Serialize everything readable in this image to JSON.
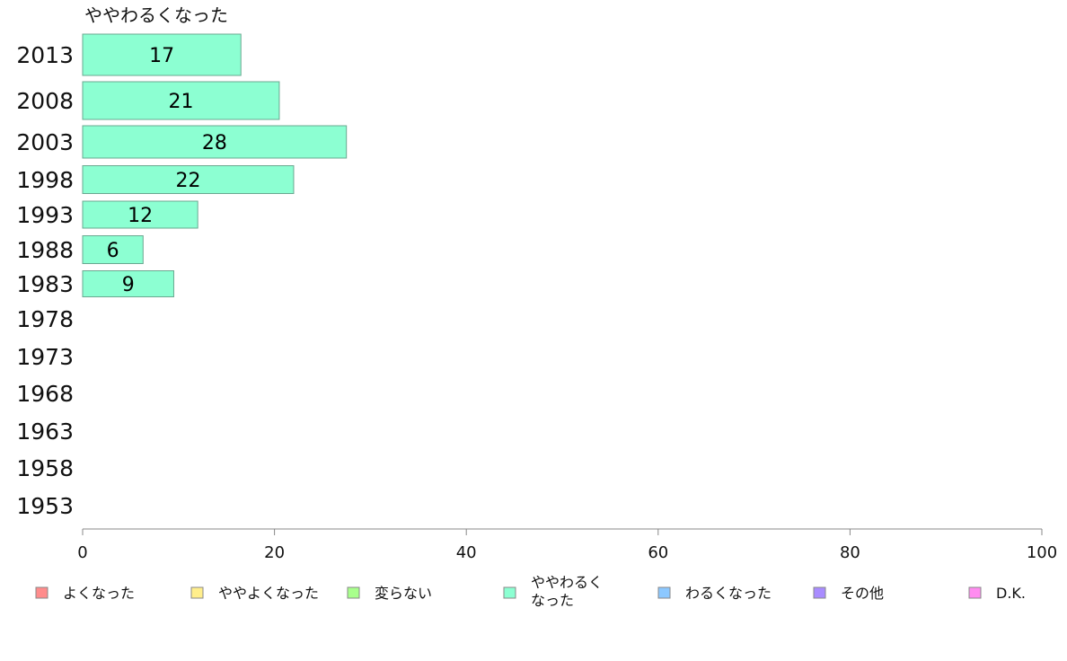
{
  "chart_data": {
    "type": "bar",
    "orientation": "horizontal",
    "title": "ややわるくなった",
    "categories": [
      "2013",
      "2008",
      "2003",
      "1998",
      "1993",
      "1988",
      "1983",
      "1978",
      "1973",
      "1968",
      "1963",
      "1958",
      "1953"
    ],
    "values": [
      16.5,
      20.5,
      27.5,
      22,
      12,
      6.3,
      9.5,
      null,
      null,
      null,
      null,
      null,
      null
    ],
    "data_labels": [
      "17",
      "21",
      "28",
      "22",
      "12",
      "6",
      "9",
      "",
      "",
      "",
      "",
      "",
      ""
    ],
    "xlim": [
      0,
      100
    ],
    "xticks": [
      0,
      20,
      40,
      60,
      80,
      100
    ],
    "xlabel": "",
    "ylabel": "",
    "bar_color": "#8cffd2",
    "legend_position": "bottom",
    "legend": [
      {
        "label": "よくなった",
        "color": "#ff8c8c"
      },
      {
        "label": "ややよくなった",
        "color": "#ffee8c"
      },
      {
        "label": "変らない",
        "color": "#a8ff8c"
      },
      {
        "label": "ややわるく\nなった",
        "color": "#8cffd2"
      },
      {
        "label": "わるくなった",
        "color": "#8cc8ff"
      },
      {
        "label": "その他",
        "color": "#a98cff"
      },
      {
        "label": "D.K.",
        "color": "#ff8cf0"
      }
    ]
  }
}
